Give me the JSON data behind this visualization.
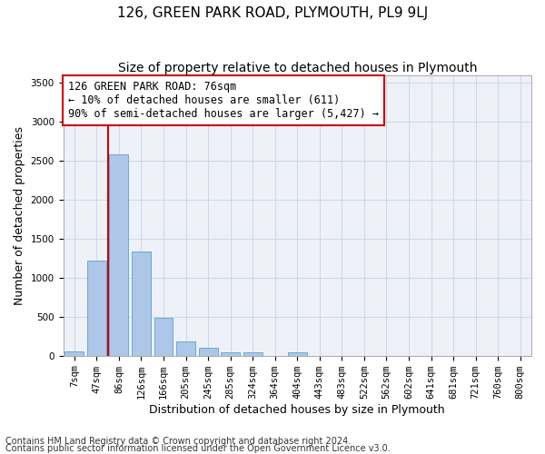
{
  "title": "126, GREEN PARK ROAD, PLYMOUTH, PL9 9LJ",
  "subtitle": "Size of property relative to detached houses in Plymouth",
  "xlabel": "Distribution of detached houses by size in Plymouth",
  "ylabel": "Number of detached properties",
  "categories": [
    "7sqm",
    "47sqm",
    "86sqm",
    "126sqm",
    "166sqm",
    "205sqm",
    "245sqm",
    "285sqm",
    "324sqm",
    "364sqm",
    "404sqm",
    "443sqm",
    "483sqm",
    "522sqm",
    "562sqm",
    "602sqm",
    "641sqm",
    "681sqm",
    "721sqm",
    "760sqm",
    "800sqm"
  ],
  "bar_values": [
    55,
    1220,
    2580,
    1340,
    490,
    185,
    100,
    45,
    45,
    0,
    45,
    0,
    0,
    0,
    0,
    0,
    0,
    0,
    0,
    0,
    0
  ],
  "bar_color": "#aec6e8",
  "bar_edgecolor": "#6aaad4",
  "vline_color": "#cc0000",
  "vline_x": 1.5,
  "annotation_text": "126 GREEN PARK ROAD: 76sqm\n← 10% of detached houses are smaller (611)\n90% of semi-detached houses are larger (5,427) →",
  "annotation_box_edgecolor": "#cc0000",
  "annotation_box_facecolor": "#ffffff",
  "ylim": [
    0,
    3600
  ],
  "yticks": [
    0,
    500,
    1000,
    1500,
    2000,
    2500,
    3000,
    3500
  ],
  "grid_color": "#d0d8e8",
  "background_color": "#eef2f8",
  "footer_line1": "Contains HM Land Registry data © Crown copyright and database right 2024.",
  "footer_line2": "Contains public sector information licensed under the Open Government Licence v3.0.",
  "title_fontsize": 11,
  "subtitle_fontsize": 10,
  "xlabel_fontsize": 9,
  "ylabel_fontsize": 9,
  "tick_fontsize": 7.5,
  "footer_fontsize": 7,
  "annotation_fontsize": 8.5
}
